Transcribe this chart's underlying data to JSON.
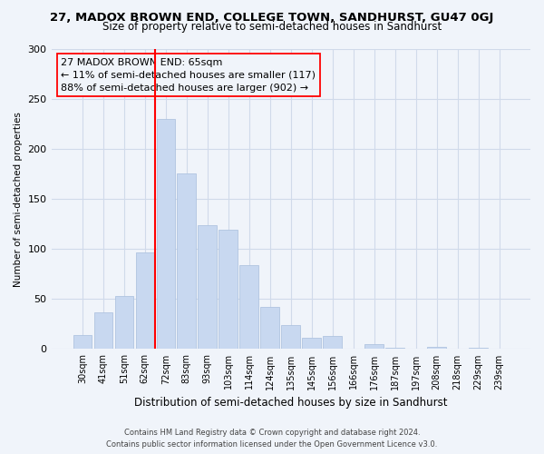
{
  "title": "27, MADOX BROWN END, COLLEGE TOWN, SANDHURST, GU47 0GJ",
  "subtitle": "Size of property relative to semi-detached houses in Sandhurst",
  "xlabel": "Distribution of semi-detached houses by size in Sandhurst",
  "ylabel": "Number of semi-detached properties",
  "bar_color": "#c8d8f0",
  "bar_edge_color": "#b0c4e0",
  "categories": [
    "30sqm",
    "41sqm",
    "51sqm",
    "62sqm",
    "72sqm",
    "83sqm",
    "93sqm",
    "103sqm",
    "114sqm",
    "124sqm",
    "135sqm",
    "145sqm",
    "156sqm",
    "166sqm",
    "176sqm",
    "187sqm",
    "197sqm",
    "208sqm",
    "218sqm",
    "229sqm",
    "239sqm"
  ],
  "values": [
    14,
    37,
    53,
    97,
    230,
    176,
    124,
    119,
    84,
    42,
    24,
    11,
    13,
    0,
    5,
    1,
    0,
    2,
    0,
    1,
    0
  ],
  "ylim": [
    0,
    300
  ],
  "yticks": [
    0,
    50,
    100,
    150,
    200,
    250,
    300
  ],
  "property_line_x": 3.5,
  "annotation_title": "27 MADOX BROWN END: 65sqm",
  "annotation_line1": "← 11% of semi-detached houses are smaller (117)",
  "annotation_line2": "88% of semi-detached houses are larger (902) →",
  "footer1": "Contains HM Land Registry data © Crown copyright and database right 2024.",
  "footer2": "Contains public sector information licensed under the Open Government Licence v3.0.",
  "grid_color": "#d0daea",
  "background_color": "#f0f4fa"
}
